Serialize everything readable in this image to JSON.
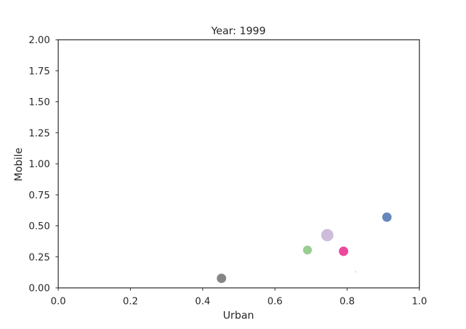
{
  "chart_data": {
    "type": "scatter",
    "title": "Year: 1999",
    "xlabel": "Urban",
    "ylabel": "Mobile",
    "xlim": [
      0.0,
      1.0
    ],
    "ylim": [
      0.0,
      2.0
    ],
    "xticks": [
      "0.0",
      "0.2",
      "0.4",
      "0.6",
      "0.8",
      "1.0"
    ],
    "yticks": [
      "0.00",
      "0.25",
      "0.50",
      "0.75",
      "1.00",
      "1.25",
      "1.50",
      "1.75",
      "2.00"
    ],
    "grid": false,
    "points": [
      {
        "x": 0.91,
        "y": 0.57,
        "size": 11,
        "color": "#4c72b0"
      },
      {
        "x": 0.823,
        "y": 0.13,
        "size": 2.5,
        "color": "#ffb27f"
      },
      {
        "x": 0.745,
        "y": 0.425,
        "size": 14,
        "color": "#c5b0d5"
      },
      {
        "x": 0.79,
        "y": 0.295,
        "size": 11,
        "color": "#e7298a"
      },
      {
        "x": 0.69,
        "y": 0.305,
        "size": 10.5,
        "color": "#86c67c"
      },
      {
        "x": 0.452,
        "y": 0.077,
        "size": 11,
        "color": "#707070"
      }
    ]
  }
}
